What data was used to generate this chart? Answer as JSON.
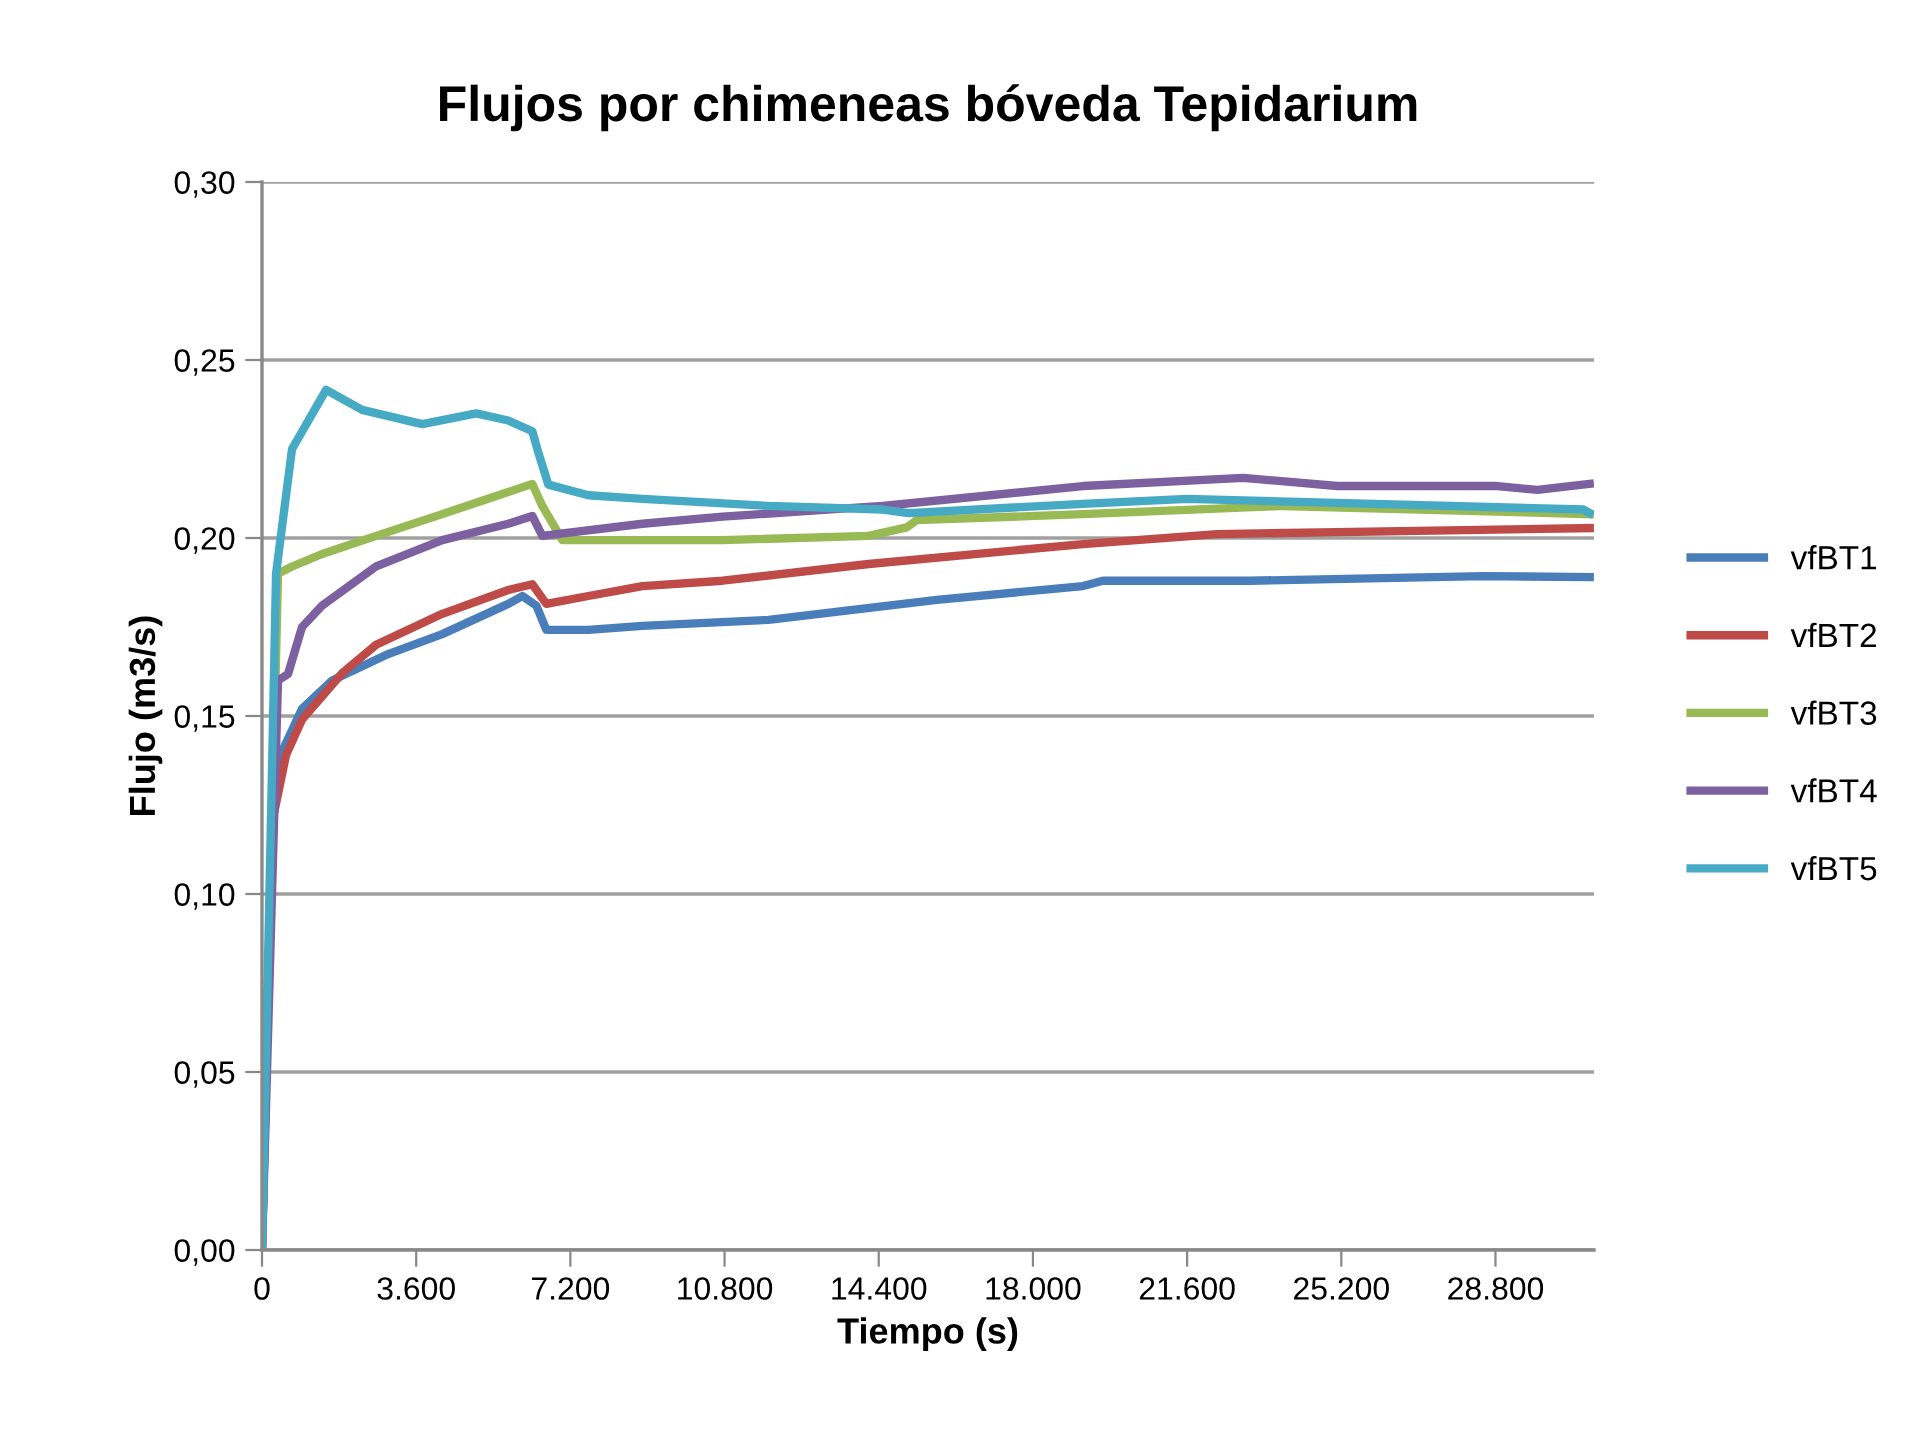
{
  "chart_data": {
    "type": "line",
    "title": "Flujos por chimeneas bóveda Tepidarium",
    "xlabel": "Tiempo (s)",
    "ylabel": "Flujo (m3/s)",
    "xlim": [
      0,
      31100
    ],
    "ylim": [
      0,
      0.3
    ],
    "xticks": [
      0,
      {
        "value": 3600,
        "label": "3.600"
      },
      {
        "value": 7200,
        "label": "7.200"
      },
      {
        "value": 10800,
        "label": "10.800"
      },
      {
        "value": 14400,
        "label": "14.400"
      },
      {
        "value": 18000,
        "label": "18.000"
      },
      {
        "value": 21600,
        "label": "21.600"
      },
      {
        "value": 25200,
        "label": "25.200"
      },
      {
        "value": 28800,
        "label": "28.800"
      }
    ],
    "yticks": [
      {
        "value": 0,
        "label": "0,00"
      },
      {
        "value": 0.05,
        "label": "0,05"
      },
      {
        "value": 0.1,
        "label": "0,10"
      },
      {
        "value": 0.15,
        "label": "0,15"
      },
      {
        "value": 0.2,
        "label": "0,20"
      },
      {
        "value": 0.25,
        "label": "0,25"
      },
      {
        "value": 0.3,
        "label": "0,30"
      }
    ],
    "grid": "y",
    "legend": "right",
    "marker": "none",
    "line_style": "solid",
    "series": [
      {
        "name": "vfBT1",
        "color": "#4a7ebb",
        "x": [
          0,
          234,
          468,
          935,
          1636,
          2945,
          4208,
          5750,
          6078,
          6405,
          6639,
          7620,
          8883,
          11828,
          15755,
          19168,
          19635,
          23048,
          28518,
          31000
        ],
        "values": [
          0,
          0.12,
          0.14,
          0.152,
          0.16,
          0.1674,
          0.173,
          0.1815,
          0.1837,
          0.181,
          0.1742,
          0.1742,
          0.1753,
          0.177,
          0.1826,
          0.1865,
          0.188,
          0.188,
          0.1893,
          0.189
        ]
      },
      {
        "name": "vfBT2",
        "color": "#be4b48",
        "x": [
          0,
          234,
          561,
          935,
          1870,
          2665,
          4208,
          5750,
          6311,
          6639,
          7620,
          8883,
          10753,
          14165,
          19168,
          22300,
          26975,
          31000
        ],
        "values": [
          0,
          0.12,
          0.139,
          0.149,
          0.162,
          0.17,
          0.1787,
          0.1854,
          0.187,
          0.1815,
          0.1837,
          0.1865,
          0.188,
          0.1927,
          0.1983,
          0.2011,
          0.202,
          0.2028
        ]
      },
      {
        "name": "vfBT3",
        "color": "#98b954",
        "x": [
          0,
          374,
          701,
          1403,
          2665,
          4208,
          5470,
          6311,
          6545,
          7013,
          8883,
          10753,
          14165,
          15054,
          15287,
          19168,
          23843,
          31000
        ],
        "values": [
          0,
          0.19,
          0.192,
          0.1955,
          0.2006,
          0.2067,
          0.2118,
          0.2152,
          0.209,
          0.1994,
          0.1994,
          0.1994,
          0.2006,
          0.203,
          0.205,
          0.2067,
          0.209,
          0.2067
        ]
      },
      {
        "name": "vfBT4",
        "color": "#7d60a0",
        "x": [
          0,
          374,
          608,
          935,
          1403,
          2665,
          4208,
          5750,
          6311,
          6545,
          8883,
          10753,
          14493,
          19168,
          22908,
          25105,
          28845,
          29780,
          31000
        ],
        "values": [
          0,
          0.16,
          0.1618,
          0.175,
          0.181,
          0.192,
          0.1994,
          0.204,
          0.2062,
          0.2006,
          0.204,
          0.206,
          0.209,
          0.2146,
          0.2169,
          0.2146,
          0.2146,
          0.2135,
          0.2152
        ]
      },
      {
        "name": "vfBT5",
        "color": "#46aac5",
        "x": [
          0,
          328,
          701,
          1496,
          2338,
          3740,
          5002,
          5750,
          6311,
          6452,
          6685,
          7620,
          8883,
          11828,
          14493,
          15100,
          19168,
          21600,
          30855,
          31000
        ],
        "values": [
          0,
          0.19,
          0.225,
          0.2416,
          0.236,
          0.232,
          0.235,
          0.233,
          0.23,
          0.224,
          0.215,
          0.212,
          0.211,
          0.209,
          0.208,
          0.207,
          0.2096,
          0.211,
          0.208,
          0.207
        ]
      }
    ]
  }
}
